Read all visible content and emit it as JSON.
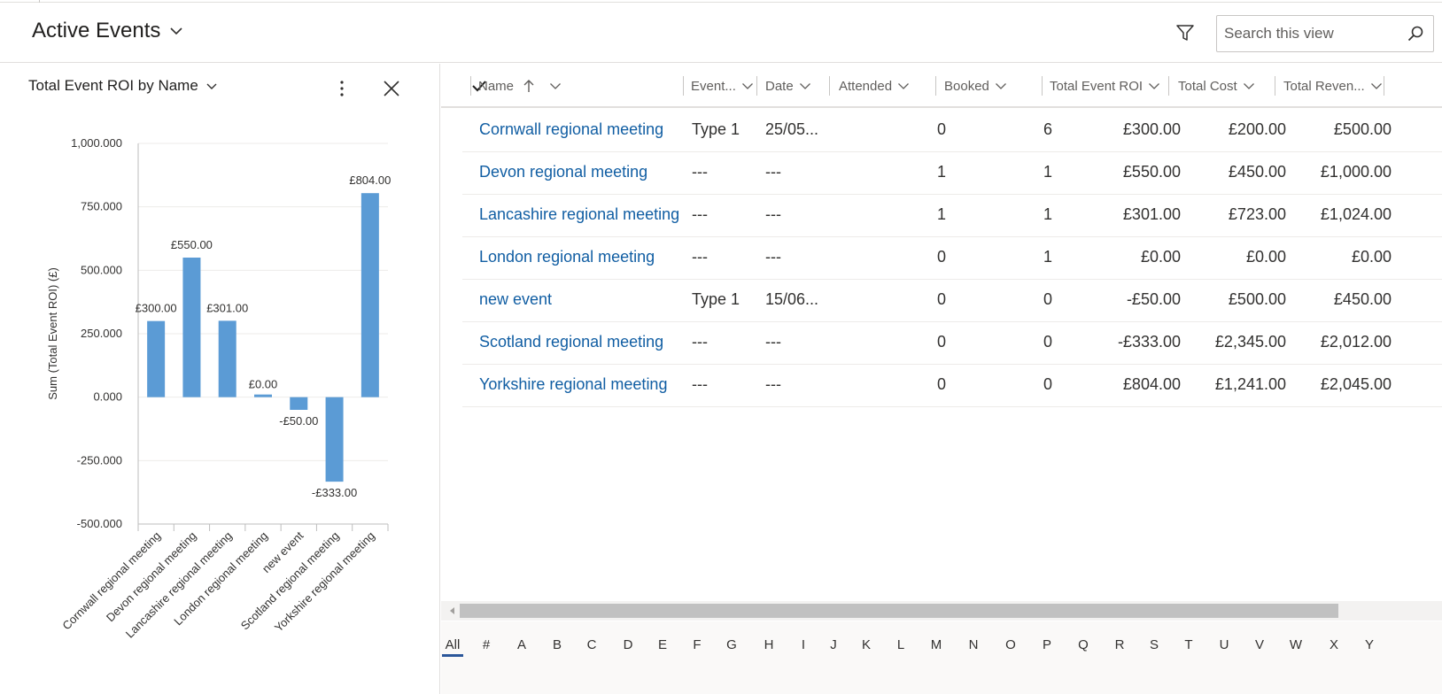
{
  "view": {
    "title": "Active Events"
  },
  "search": {
    "placeholder": "Search this view"
  },
  "chart_panel": {
    "title": "Total Event ROI by Name"
  },
  "chart_data": {
    "type": "bar",
    "ylabel": "Sum (Total Event ROI) (£)",
    "ylim": [
      -500,
      1000
    ],
    "yticks": [
      "1,000.000",
      "750.000",
      "500.000",
      "250.000",
      "0.000",
      "-250.000",
      "-500.000"
    ],
    "ytick_values": [
      1000,
      750,
      500,
      250,
      0,
      -250,
      -500
    ],
    "categories": [
      "Cornwall regional meeting",
      "Devon regional meeting",
      "Lancashire regional meeting",
      "London regional meeting",
      "new event",
      "Scotland regional meeting",
      "Yorkshire regional meeting"
    ],
    "values": [
      300,
      550,
      301,
      0,
      -50,
      -333,
      804
    ],
    "data_labels": [
      "£300.00",
      "£550.00",
      "£301.00",
      "£0.00",
      "-£50.00",
      "-£333.00",
      "£804.00"
    ],
    "grid": true,
    "color": "#5b9bd5"
  },
  "grid": {
    "columns": [
      "Name",
      "Event...",
      "Date",
      "Attended",
      "Booked",
      "Total Event ROI",
      "Total Cost",
      "Total Reven..."
    ],
    "rows": [
      [
        "Cornwall regional meeting",
        "Type 1",
        "25/05...",
        "0",
        "6",
        "£300.00",
        "£200.00",
        "£500.00"
      ],
      [
        "Devon regional meeting",
        "---",
        "---",
        "1",
        "1",
        "£550.00",
        "£450.00",
        "£1,000.00"
      ],
      [
        "Lancashire regional meeting",
        "---",
        "---",
        "1",
        "1",
        "£301.00",
        "£723.00",
        "£1,024.00"
      ],
      [
        "London regional meeting",
        "---",
        "---",
        "0",
        "1",
        "£0.00",
        "£0.00",
        "£0.00"
      ],
      [
        "new event",
        "Type 1",
        "15/06...",
        "0",
        "0",
        "-£50.00",
        "£500.00",
        "£450.00"
      ],
      [
        "Scotland regional meeting",
        "---",
        "---",
        "0",
        "0",
        "-£333.00",
        "£2,345.00",
        "£2,012.00"
      ],
      [
        "Yorkshire regional meeting",
        "---",
        "---",
        "0",
        "0",
        "£804.00",
        "£1,241.00",
        "£2,045.00"
      ]
    ]
  },
  "jump_bar": [
    "All",
    "#",
    "A",
    "B",
    "C",
    "D",
    "E",
    "F",
    "G",
    "H",
    "I",
    "J",
    "K",
    "L",
    "M",
    "N",
    "O",
    "P",
    "Q",
    "R",
    "S",
    "T",
    "U",
    "V",
    "W",
    "X",
    "Y"
  ],
  "jump_active": "All"
}
